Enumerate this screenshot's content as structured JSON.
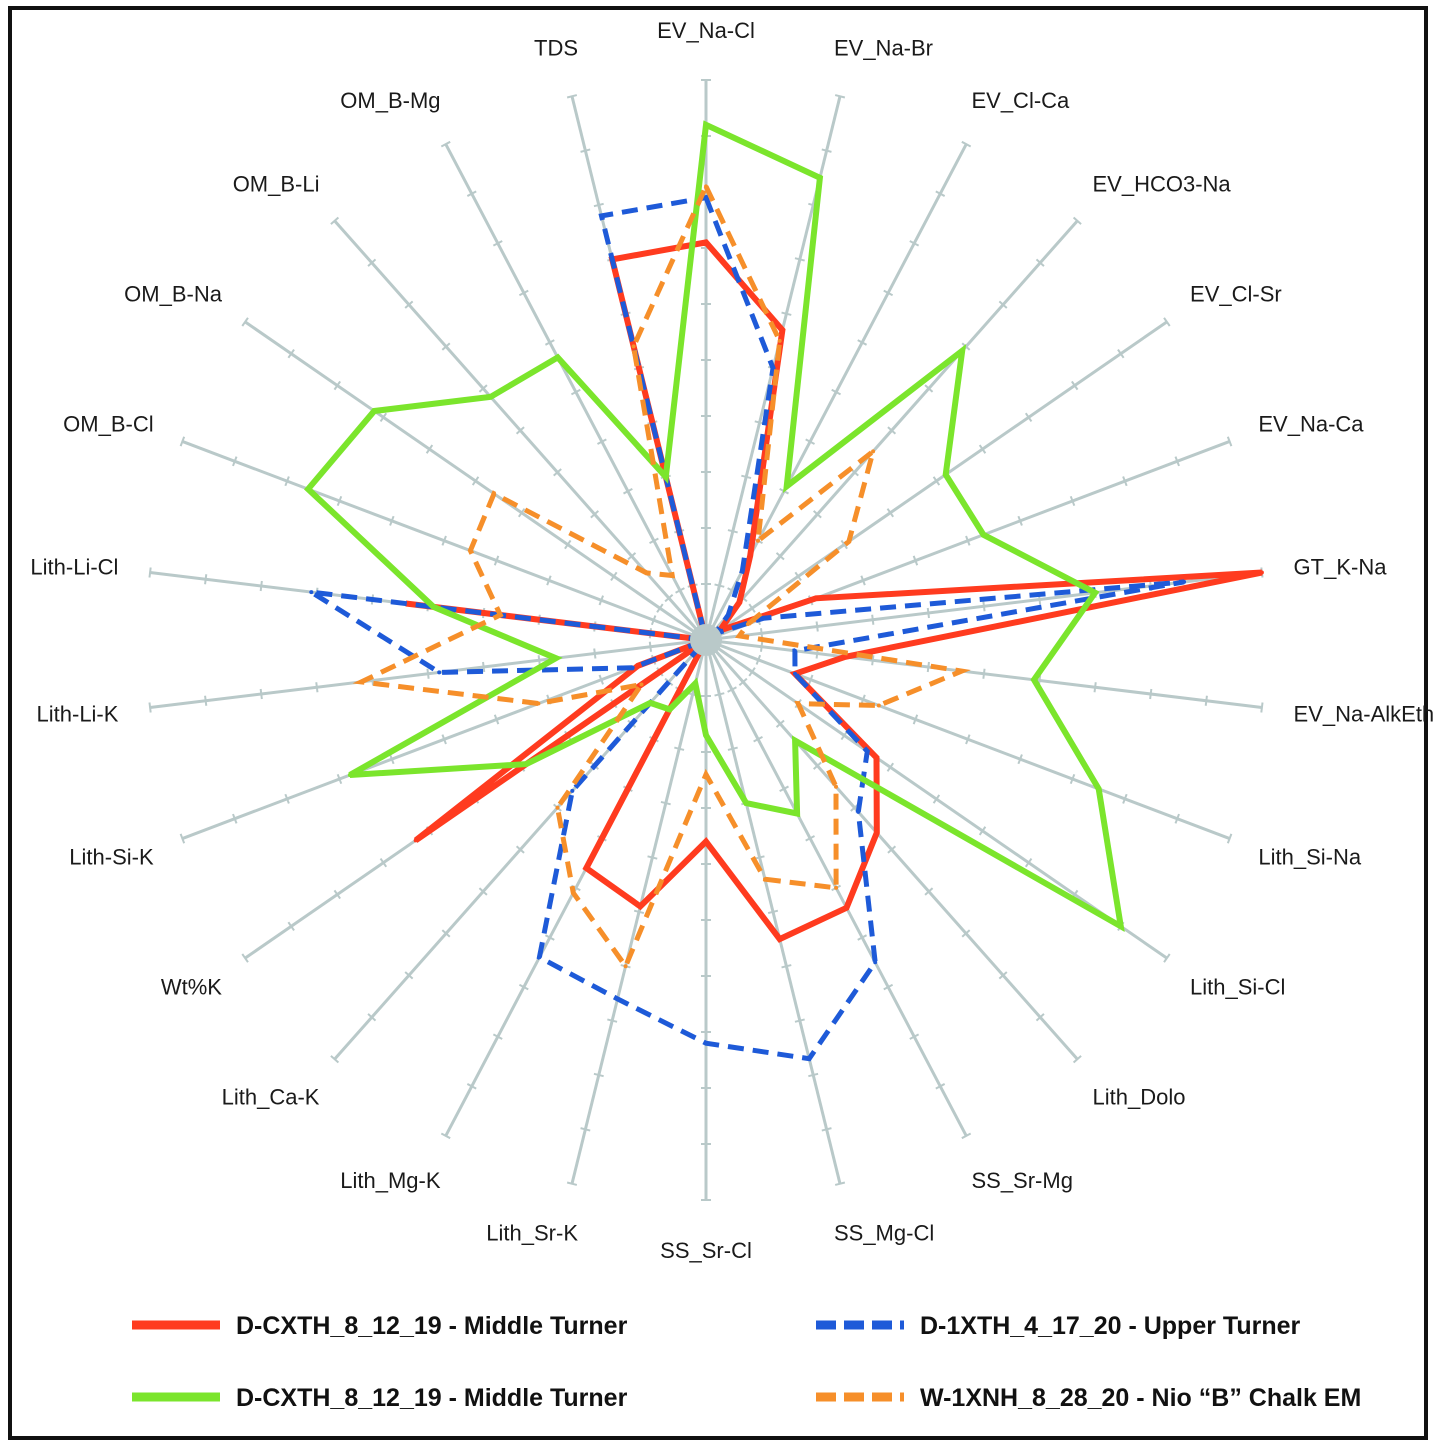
{
  "chart_data": {
    "type": "radar",
    "title": "",
    "axes": [
      "EV_Na-Cl",
      "EV_Na-Br",
      "EV_Cl-Ca",
      "EV_HCO3-Na",
      "EV_Cl-Sr",
      "EV_Na-Ca",
      "GT_K-Na",
      "EV_Na-AlkEth",
      "Lith_Si-Na",
      "Lith_Si-Cl",
      "Lith_Dolo",
      "SS_Sr-Mg",
      "SS_Mg-Cl",
      "SS_Sr-Cl",
      "Lith_Sr-K",
      "Lith_Mg-K",
      "Lith_Ca-K",
      "Wt%K",
      "Lith-Si-K",
      "Lith-Li-K",
      "Lith-Li-Cl",
      "OM_B-Cl",
      "OM_B-Na",
      "OM_B-Li",
      "OM_B-Mg",
      "TDS"
    ],
    "range": [
      0,
      10
    ],
    "ticks": 10,
    "series": [
      {
        "name": "D-CXTH_8_12_19 - Middle Turner",
        "color": "#ff3b1f",
        "dash": "solid",
        "values": [
          7.1,
          5.7,
          1.7,
          0.9,
          0.3,
          2.1,
          10.0,
          2.5,
          1.7,
          3.7,
          4.6,
          5.4,
          5.5,
          3.6,
          4.9,
          4.6,
          0.0,
          6.3,
          1.3,
          0.0,
          5.4,
          0.0,
          0.0,
          0.0,
          0.0,
          7.0
        ]
      },
      {
        "name": "D-1XTH_4_17_20 - Upper Turner",
        "color": "#1e5ad8",
        "dash": "dash",
        "values": [
          7.9,
          5.0,
          1.4,
          0.6,
          0.2,
          1.1,
          8.6,
          1.6,
          1.7,
          3.5,
          4.1,
          6.5,
          7.7,
          7.2,
          6.6,
          6.4,
          3.6,
          0.0,
          1.4,
          4.8,
          7.1,
          0.0,
          0.0,
          0.0,
          0.0,
          7.8
        ]
      },
      {
        "name": "D-CXTH_8_12_19 - Middle Turner",
        "color": "#7be52c",
        "dash": "solid",
        "values": [
          9.2,
          8.5,
          3.1,
          6.9,
          5.2,
          5.3,
          7.0,
          5.9,
          7.5,
          9.0,
          2.4,
          3.5,
          3.0,
          1.7,
          0.8,
          1.4,
          1.5,
          3.9,
          6.8,
          2.7,
          4.9,
          7.6,
          7.2,
          5.8,
          5.7,
          3.0
        ]
      },
      {
        "name": "W-1XNH_8_28_20 - Nio “B” Chalk EM",
        "color": "#f68f2a",
        "dash": "dash",
        "values": [
          8.1,
          5.5,
          2.0,
          4.5,
          3.1,
          0.8,
          0.6,
          4.6,
          3.3,
          2.0,
          3.5,
          5.0,
          4.4,
          2.4,
          6.0,
          5.1,
          4.0,
          1.4,
          3.2,
          6.2,
          3.7,
          4.5,
          4.6,
          1.6,
          1.3,
          5.4
        ]
      }
    ],
    "legend": {
      "items": [
        {
          "label": "D-CXTH_8_12_19 - Middle Turner",
          "color": "#ff3b1f",
          "dash": "solid"
        },
        {
          "label": "D-1XTH_4_17_20 - Upper Turner",
          "color": "#1e5ad8",
          "dash": "dash"
        },
        {
          "label": "D-CXTH_8_12_19 - Middle Turner",
          "color": "#7be52c",
          "dash": "solid"
        },
        {
          "label": "W-1XNH_8_28_20 - Nio “B” Chalk EM",
          "color": "#f68f2a",
          "dash": "dash"
        }
      ],
      "placement": "bottom"
    },
    "grid_color": "#b9c9c9"
  }
}
